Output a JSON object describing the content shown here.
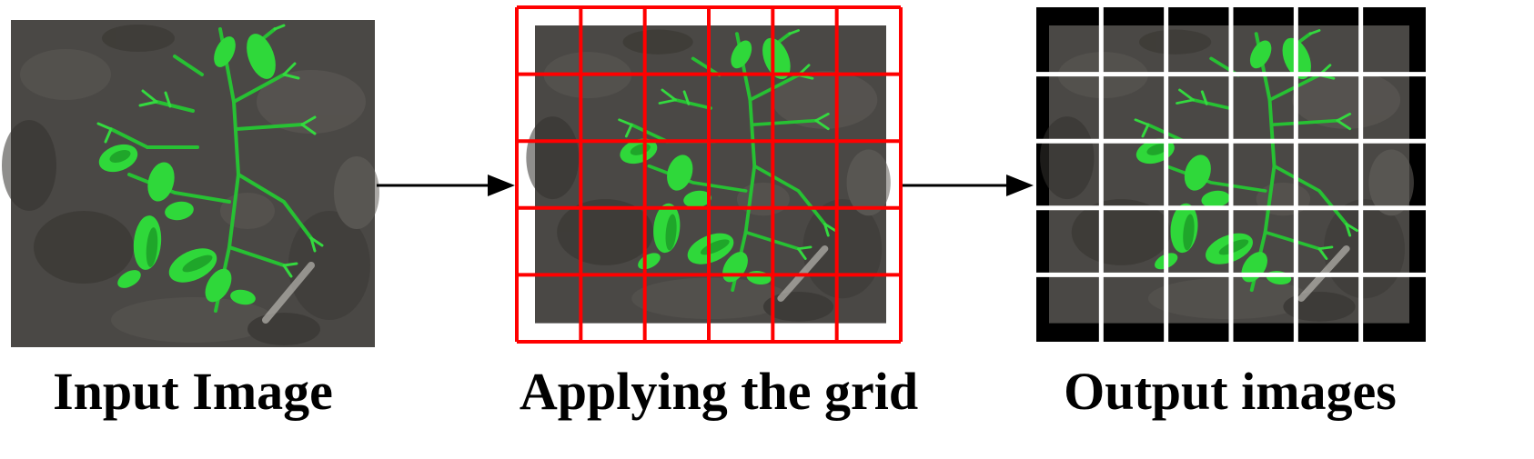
{
  "panels": [
    {
      "caption": "Input Image"
    },
    {
      "caption": "Applying the grid"
    },
    {
      "caption": "Output images"
    }
  ],
  "grid": {
    "columns": 6,
    "rows": 5
  },
  "colors": {
    "soil_dark": "#3b3a38",
    "soil_light": "#6e6b66",
    "plant": "#2fd83a",
    "plant_dark": "#1c9a27",
    "grid_red": "#ff0000",
    "tile_gap": "#ffffff",
    "frame": "#000000",
    "arrow": "#000000"
  }
}
